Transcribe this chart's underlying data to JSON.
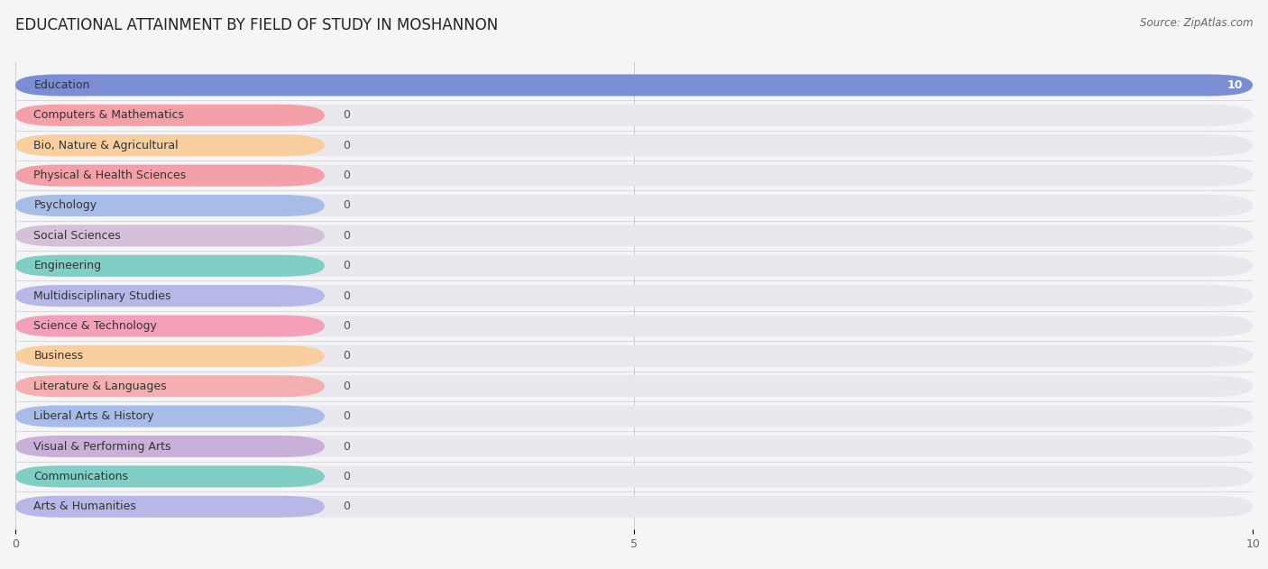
{
  "title": "EDUCATIONAL ATTAINMENT BY FIELD OF STUDY IN MOSHANNON",
  "source": "Source: ZipAtlas.com",
  "categories": [
    "Education",
    "Computers & Mathematics",
    "Bio, Nature & Agricultural",
    "Physical & Health Sciences",
    "Psychology",
    "Social Sciences",
    "Engineering",
    "Multidisciplinary Studies",
    "Science & Technology",
    "Business",
    "Literature & Languages",
    "Liberal Arts & History",
    "Visual & Performing Arts",
    "Communications",
    "Arts & Humanities"
  ],
  "values": [
    10,
    0,
    0,
    0,
    0,
    0,
    0,
    0,
    0,
    0,
    0,
    0,
    0,
    0,
    0
  ],
  "bar_colors": [
    "#7b8ed4",
    "#f4a0a8",
    "#f9cfa0",
    "#f4a0a8",
    "#a8bce8",
    "#d4c0d8",
    "#80cec4",
    "#b8b8e8",
    "#f4a0b8",
    "#f9cfa0",
    "#f4b0b0",
    "#a8bce8",
    "#c8b0d8",
    "#80cec4",
    "#b8b8e8"
  ],
  "zero_bar_width": 2.5,
  "xlim": [
    0,
    10
  ],
  "xticks": [
    0,
    5,
    10
  ],
  "background_color": "#f5f5f7",
  "bar_bg_color": "#e8e8ee",
  "title_fontsize": 12,
  "label_fontsize": 9,
  "source_fontsize": 8.5
}
